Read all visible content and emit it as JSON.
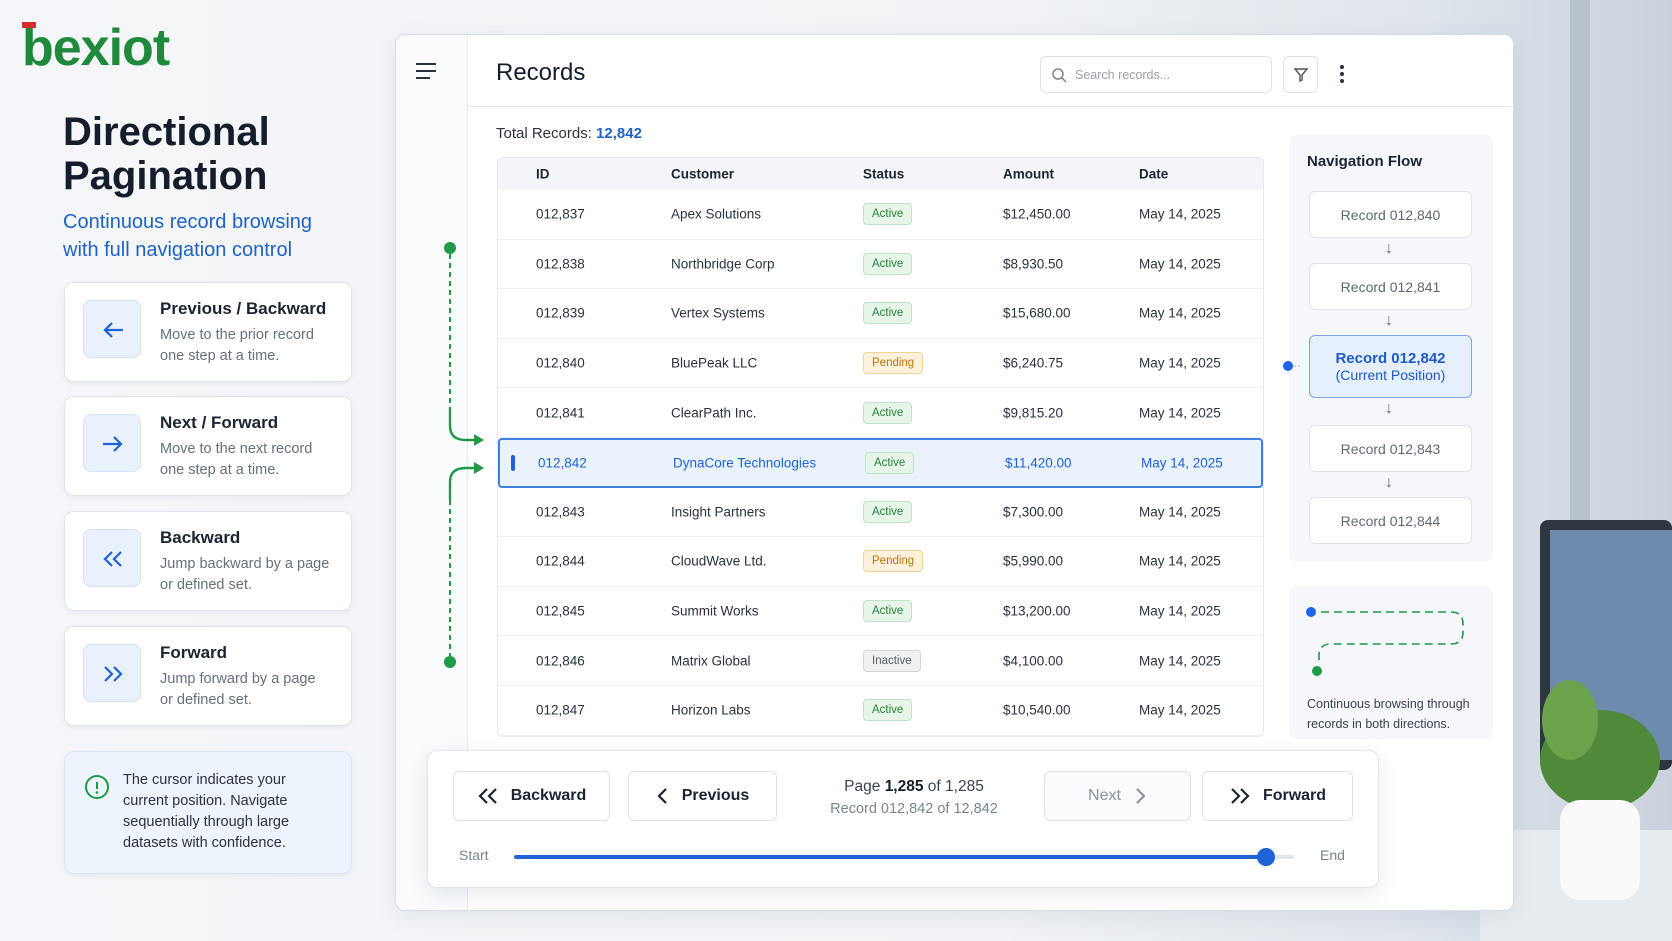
{
  "brand": {
    "logo": "bexiot",
    "title": "Directional Pagination",
    "subtitle": "Continuous record browsing with full navigation control"
  },
  "features": [
    {
      "title": "Previous / Backward",
      "desc": "Move to the prior record one step at a time."
    },
    {
      "title": "Next / Forward",
      "desc": "Move to the next record one step at a time."
    },
    {
      "title": "Backward",
      "desc": "Jump backward by a page or defined set."
    },
    {
      "title": "Forward",
      "desc": "Jump forward by a page or defined set."
    }
  ],
  "info_note": "The cursor indicates your current position. Navigate sequentially through large datasets with confidence.",
  "app": {
    "title": "Records",
    "search_placeholder": "Search records...",
    "total_label": "Total Records:",
    "total_value": "12,842"
  },
  "table": {
    "columns": [
      "ID",
      "Customer",
      "Status",
      "Amount",
      "Date"
    ],
    "rows": [
      [
        "012,837",
        "Apex Solutions",
        "Active",
        "$12,450.00",
        "May 14, 2025"
      ],
      [
        "012,838",
        "Northbridge Corp",
        "Active",
        "$8,930.50",
        "May 14, 2025"
      ],
      [
        "012,839",
        "Vertex Systems",
        "Active",
        "$15,680.00",
        "May 14, 2025"
      ],
      [
        "012,840",
        "BluePeak LLC",
        "Pending",
        "$6,240.75",
        "May 14, 2025"
      ],
      [
        "012,841",
        "ClearPath Inc.",
        "Active",
        "$9,815.20",
        "May 14, 2025"
      ],
      [
        "012,842",
        "DynaCore Technologies",
        "Active",
        "$11,420.00",
        "May 14, 2025"
      ],
      [
        "012,843",
        "Insight Partners",
        "Active",
        "$7,300.00",
        "May 14, 2025"
      ],
      [
        "012,844",
        "CloudWave Ltd.",
        "Pending",
        "$5,990.00",
        "May 14, 2025"
      ],
      [
        "012,845",
        "Summit Works",
        "Active",
        "$13,200.00",
        "May 14, 2025"
      ],
      [
        "012,846",
        "Matrix Global",
        "Inactive",
        "$4,100.00",
        "May 14, 2025"
      ],
      [
        "012,847",
        "Horizon Labs",
        "Active",
        "$10,540.00",
        "May 14, 2025"
      ]
    ]
  },
  "navigation_flow": {
    "title": "Navigation Flow",
    "items": [
      "Record 012,840",
      "Record 012,841",
      "Record 012,842",
      "Record 012,843",
      "Record 012,844"
    ],
    "current_note": "(Current Position)",
    "note": "Continuous browsing through records in both directions."
  },
  "pagination": {
    "backward": "Backward",
    "previous": "Previous",
    "next": "Next",
    "forward": "Forward",
    "page_label": "Page",
    "page_current": "1,285",
    "page_total": "of 1,285",
    "record_info": "Record 012,842 of 12,842",
    "start": "Start",
    "end": "End"
  }
}
